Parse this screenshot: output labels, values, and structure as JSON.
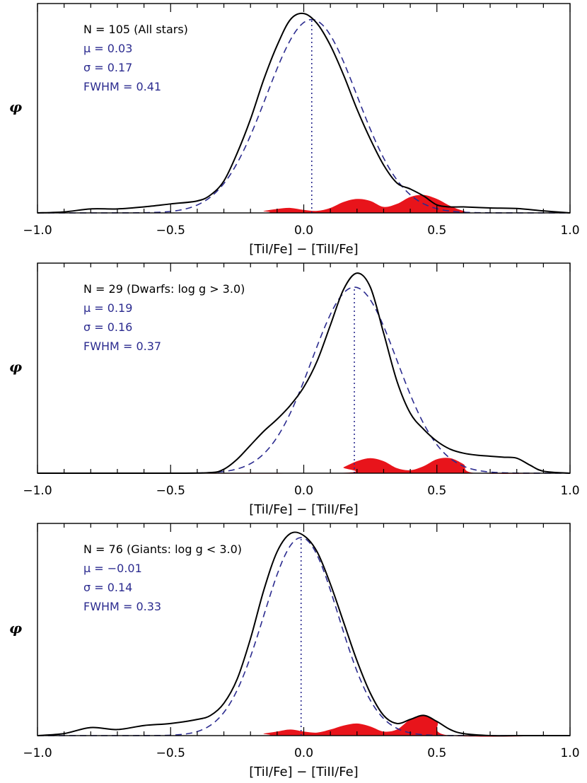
{
  "colors": {
    "axis": "#000000",
    "kde": "#000000",
    "gaussian": "#2b2b8f",
    "annotation": "#2b2b8f",
    "uncertainty_fill": "#e8141b"
  },
  "chart_data": [
    {
      "type": "line",
      "panel": "top",
      "xlabel": "[TiI/Fe] − [TiII/Fe]",
      "ylabel": "φ",
      "xlim": [
        -1.0,
        1.0
      ],
      "ylim": [
        0,
        1.05
      ],
      "xticks": [
        -1.0,
        -0.5,
        0.0,
        0.5,
        1.0
      ],
      "xtick_labels": [
        "−1.0",
        "−0.5",
        "0.0",
        "0.5",
        "1.0"
      ],
      "annotations": {
        "n_label": "N = 105 (All stars)",
        "mu_label": "μ =  0.03",
        "sigma_label": "σ = 0.17",
        "fwhm_label": "FWHM = 0.41"
      },
      "mean": 0.03,
      "sigma": 0.17,
      "kde": {
        "x": [
          -1.0,
          -0.9,
          -0.8,
          -0.7,
          -0.6,
          -0.5,
          -0.4,
          -0.35,
          -0.3,
          -0.25,
          -0.2,
          -0.15,
          -0.1,
          -0.05,
          0.0,
          0.05,
          0.1,
          0.15,
          0.2,
          0.25,
          0.3,
          0.35,
          0.4,
          0.45,
          0.5,
          0.55,
          0.6,
          0.7,
          0.8,
          0.9,
          1.0
        ],
        "y": [
          0.0,
          0.005,
          0.02,
          0.02,
          0.03,
          0.045,
          0.06,
          0.09,
          0.16,
          0.3,
          0.47,
          0.67,
          0.84,
          0.97,
          1.0,
          0.95,
          0.84,
          0.69,
          0.52,
          0.37,
          0.24,
          0.15,
          0.12,
          0.085,
          0.04,
          0.03,
          0.03,
          0.025,
          0.022,
          0.01,
          0.0
        ]
      },
      "gaussian": {
        "peak": 0.97
      },
      "uncertainty": {
        "x": [
          -1.0,
          -0.2,
          -0.15,
          -0.1,
          -0.05,
          0.0,
          0.05,
          0.1,
          0.15,
          0.2,
          0.25,
          0.3,
          0.35,
          0.4,
          0.45,
          0.5,
          0.55,
          0.6,
          0.65,
          1.0
        ],
        "y": [
          0.0,
          0.0,
          0.01,
          0.02,
          0.025,
          0.015,
          0.01,
          0.025,
          0.055,
          0.07,
          0.06,
          0.03,
          0.045,
          0.08,
          0.09,
          0.07,
          0.035,
          0.01,
          0.0,
          0.0
        ]
      }
    },
    {
      "type": "line",
      "panel": "middle",
      "xlabel": "[TiI/Fe] − [TiII/Fe]",
      "ylabel": "φ",
      "xlim": [
        -1.0,
        1.0
      ],
      "ylim": [
        0,
        1.05
      ],
      "xticks": [
        -1.0,
        -0.5,
        0.0,
        0.5,
        1.0
      ],
      "xtick_labels": [
        "−1.0",
        "−0.5",
        "0.0",
        "0.5",
        "1.0"
      ],
      "annotations": {
        "n_label": "N = 29 (Dwarfs: log g > 3.0)",
        "mu_label": "μ =  0.19",
        "sigma_label": "σ = 0.16",
        "fwhm_label": "FWHM = 0.37"
      },
      "mean": 0.19,
      "sigma": 0.16,
      "kde": {
        "x": [
          -1.0,
          -0.5,
          -0.35,
          -0.3,
          -0.25,
          -0.2,
          -0.15,
          -0.1,
          -0.05,
          0.0,
          0.05,
          0.1,
          0.15,
          0.2,
          0.25,
          0.3,
          0.35,
          0.4,
          0.45,
          0.5,
          0.55,
          0.6,
          0.65,
          0.7,
          0.75,
          0.8,
          0.85,
          0.9,
          1.0
        ],
        "y": [
          0.0,
          0.0,
          0.003,
          0.02,
          0.07,
          0.14,
          0.21,
          0.27,
          0.34,
          0.43,
          0.56,
          0.74,
          0.92,
          1.0,
          0.93,
          0.7,
          0.46,
          0.3,
          0.22,
          0.16,
          0.12,
          0.1,
          0.09,
          0.085,
          0.08,
          0.075,
          0.04,
          0.01,
          0.0
        ]
      },
      "gaussian": {
        "peak": 0.93
      },
      "uncertainty": {
        "x": [
          -1.0,
          0.1,
          0.15,
          0.2,
          0.25,
          0.3,
          0.35,
          0.4,
          0.45,
          0.5,
          0.55,
          0.6,
          0.65,
          1.0
        ],
        "y": [
          0.0,
          0.0,
          0.03,
          0.06,
          0.075,
          0.06,
          0.025,
          0.015,
          0.035,
          0.07,
          0.075,
          0.045,
          0.0,
          0.0
        ]
      }
    },
    {
      "type": "line",
      "panel": "bottom",
      "xlabel": "[TiI/Fe] − [TiII/Fe]",
      "ylabel": "φ",
      "xlim": [
        -1.0,
        1.0
      ],
      "ylim": [
        0,
        1.05
      ],
      "xticks": [
        -1.0,
        -0.5,
        0.0,
        0.5,
        1.0
      ],
      "xtick_labels": [
        "−1.0",
        "−0.5",
        "0.0",
        "0.5",
        "1.0"
      ],
      "annotations": {
        "n_label": "N = 76 (Giants: log g < 3.0)",
        "mu_label": "μ = −0.01",
        "sigma_label": "σ = 0.14",
        "fwhm_label": "FWHM = 0.33"
      },
      "mean": -0.01,
      "sigma": 0.14,
      "kde": {
        "x": [
          -1.0,
          -0.9,
          -0.8,
          -0.7,
          -0.6,
          -0.5,
          -0.4,
          -0.35,
          -0.3,
          -0.25,
          -0.2,
          -0.15,
          -0.1,
          -0.05,
          0.0,
          0.05,
          0.1,
          0.15,
          0.2,
          0.25,
          0.3,
          0.35,
          0.4,
          0.45,
          0.5,
          0.55,
          0.6,
          0.7,
          0.8,
          0.9,
          1.0
        ],
        "y": [
          0.0,
          0.01,
          0.04,
          0.03,
          0.05,
          0.06,
          0.08,
          0.1,
          0.16,
          0.28,
          0.48,
          0.72,
          0.91,
          1.0,
          0.99,
          0.91,
          0.75,
          0.56,
          0.37,
          0.21,
          0.1,
          0.06,
          0.08,
          0.1,
          0.07,
          0.03,
          0.01,
          0.0,
          0.0,
          0.0,
          0.0
        ]
      },
      "gaussian": {
        "peak": 0.98
      },
      "uncertainty": {
        "x": [
          -1.0,
          -0.2,
          -0.15,
          -0.1,
          -0.05,
          0.0,
          0.05,
          0.1,
          0.15,
          0.2,
          0.25,
          0.3,
          0.35,
          0.4,
          0.45,
          0.5,
          0.55,
          1.0
        ],
        "y": [
          0.0,
          0.0,
          0.01,
          0.02,
          0.03,
          0.02,
          0.015,
          0.03,
          0.05,
          0.06,
          0.045,
          0.02,
          0.03,
          0.08,
          0.1,
          0.07,
          0.0,
          0.0
        ]
      }
    }
  ]
}
